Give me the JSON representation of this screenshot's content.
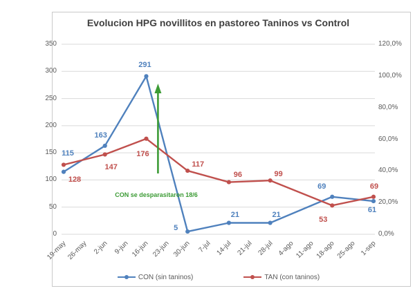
{
  "window": {
    "background": "#ffffff",
    "frame_border_color": "#c9c9c9"
  },
  "chart_data": {
    "type": "line",
    "title": "Evolucion HPG novillitos en pastoreo Taninos vs Control",
    "categories": [
      "19-may",
      "26-may",
      "2-jun",
      "9-jun",
      "16-jun",
      "23-jun",
      "30-jun",
      "7-jul",
      "14-jul",
      "21-jul",
      "28-jul",
      "4-ago",
      "11-ago",
      "18-ago",
      "25-ago",
      "1-sep"
    ],
    "series": [
      {
        "name": "CON (sin taninos)",
        "color": "#4F81BD",
        "axis": "left",
        "data": [
          {
            "category": "19-may",
            "value": 115
          },
          {
            "category": "2-jun",
            "value": 163
          },
          {
            "category": "16-jun",
            "value": 291
          },
          {
            "category": "30-jun",
            "value": 5
          },
          {
            "category": "14-jul",
            "value": 21
          },
          {
            "category": "28-jul",
            "value": 21
          },
          {
            "category": "18-ago",
            "value": 69
          },
          {
            "category": "1-sep",
            "value": 61
          }
        ]
      },
      {
        "name": "TAN (con taninos)",
        "color": "#C0504D",
        "axis": "left",
        "data": [
          {
            "category": "19-may",
            "value": 128
          },
          {
            "category": "2-jun",
            "value": 147
          },
          {
            "category": "16-jun",
            "value": 176
          },
          {
            "category": "30-jun",
            "value": 117
          },
          {
            "category": "14-jul",
            "value": 96
          },
          {
            "category": "28-jul",
            "value": 99
          },
          {
            "category": "18-ago",
            "value": 53
          },
          {
            "category": "1-sep",
            "value": 69
          }
        ]
      }
    ],
    "left_axis": {
      "min": 0,
      "max": 350,
      "step": 50,
      "tick_labels": [
        "0",
        "50",
        "100",
        "150",
        "200",
        "250",
        "300",
        "350"
      ]
    },
    "right_axis": {
      "min_label": "0,0%",
      "max_label": "120,0%",
      "tick_labels": [
        "0,0%",
        "20,0%",
        "40,0%",
        "60,0%",
        "80,0%",
        "100,0%",
        "120,0%"
      ]
    },
    "annotation": {
      "text": "CON se desparasitaron 18/6",
      "color": "#3C9B35",
      "arrow_direction": "up",
      "arrow_between": [
        "16-jun",
        "23-jun"
      ]
    },
    "legend": {
      "position": "bottom",
      "entries": [
        "CON (sin taninos)",
        "TAN (con taninos)"
      ]
    },
    "grid": "horizontal",
    "gridline_color": "#d9d9d9"
  }
}
